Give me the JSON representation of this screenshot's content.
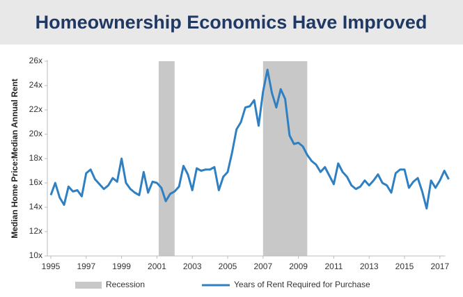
{
  "chart_data": {
    "type": "line",
    "title": "Homeownership Economics Have Improved",
    "y_label": "Median Home Price:Median Annual Rent",
    "x": [
      1995.0,
      1995.25,
      1995.5,
      1995.75,
      1996.0,
      1996.25,
      1996.5,
      1996.75,
      1997.0,
      1997.25,
      1997.5,
      1997.75,
      1998.0,
      1998.25,
      1998.5,
      1998.75,
      1999.0,
      1999.25,
      1999.5,
      1999.75,
      2000.0,
      2000.25,
      2000.5,
      2000.75,
      2001.0,
      2001.25,
      2001.5,
      2001.75,
      2002.0,
      2002.25,
      2002.5,
      2002.75,
      2003.0,
      2003.25,
      2003.5,
      2003.75,
      2004.0,
      2004.25,
      2004.5,
      2004.75,
      2005.0,
      2005.25,
      2005.5,
      2005.75,
      2006.0,
      2006.25,
      2006.5,
      2006.75,
      2007.0,
      2007.25,
      2007.5,
      2007.75,
      2008.0,
      2008.25,
      2008.5,
      2008.75,
      2009.0,
      2009.25,
      2009.5,
      2009.75,
      2010.0,
      2010.25,
      2010.5,
      2010.75,
      2011.0,
      2011.25,
      2011.5,
      2011.75,
      2012.0,
      2012.25,
      2012.5,
      2012.75,
      2013.0,
      2013.25,
      2013.5,
      2013.75,
      2014.0,
      2014.25,
      2014.5,
      2014.75,
      2015.0,
      2015.25,
      2015.5,
      2015.75,
      2016.0,
      2016.25,
      2016.5,
      2016.75,
      2017.0,
      2017.25,
      2017.5
    ],
    "series": [
      {
        "name": "Years of Rent Required for Purchase",
        "color": "#2f80c2",
        "values": [
          15.0,
          16.0,
          14.8,
          14.2,
          15.7,
          15.3,
          15.4,
          14.9,
          16.8,
          17.1,
          16.3,
          15.9,
          15.5,
          15.8,
          16.4,
          16.1,
          18.0,
          16.0,
          15.5,
          15.2,
          15.0,
          16.9,
          15.2,
          16.1,
          16.0,
          15.6,
          14.5,
          15.1,
          15.3,
          15.7,
          17.4,
          16.7,
          15.4,
          17.2,
          17.0,
          17.1,
          17.1,
          17.3,
          15.4,
          16.5,
          16.9,
          18.5,
          20.4,
          21.0,
          22.2,
          22.3,
          22.8,
          20.7,
          23.5,
          25.3,
          23.4,
          22.2,
          23.7,
          22.9,
          19.9,
          19.2,
          19.3,
          19.0,
          18.3,
          17.8,
          17.5,
          16.9,
          17.3,
          16.6,
          15.9,
          17.6,
          16.9,
          16.5,
          15.8,
          15.5,
          15.7,
          16.2,
          15.8,
          16.2,
          16.7,
          16.0,
          15.8,
          15.2,
          16.8,
          17.1,
          17.1,
          15.6,
          16.1,
          16.4,
          15.3,
          13.9,
          16.2,
          15.6,
          16.2,
          17.0,
          16.3
        ]
      }
    ],
    "shading": {
      "name": "Recession",
      "color": "#c8c8c8",
      "ranges": [
        [
          2001.1,
          2002.0
        ],
        [
          2007.0,
          2009.5
        ]
      ]
    },
    "xlim": [
      1995,
      2017.5
    ],
    "xticks": [
      1995,
      1997,
      1999,
      2001,
      2003,
      2005,
      2007,
      2009,
      2011,
      2013,
      2015,
      2017
    ],
    "ylim": [
      10,
      26
    ],
    "yticks": [
      {
        "value": 10,
        "label": "10x"
      },
      {
        "value": 12,
        "label": "12x"
      },
      {
        "value": 14,
        "label": "14x"
      },
      {
        "value": 16,
        "label": "16x"
      },
      {
        "value": 18,
        "label": "18x"
      },
      {
        "value": 20,
        "label": "20x"
      },
      {
        "value": 22,
        "label": "22x"
      },
      {
        "value": 24,
        "label": "24x"
      },
      {
        "value": 26,
        "label": "26x"
      }
    ],
    "grid": false
  }
}
